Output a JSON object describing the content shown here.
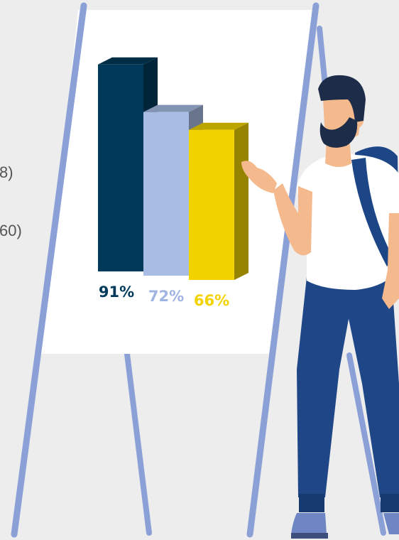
{
  "edge_text": [
    "8)",
    "60)"
  ],
  "colors": {
    "background": "#ededed",
    "easel": "#8ca0d8",
    "board": "#ffffff",
    "bar_dark": "#003a5a",
    "bar_light": "#a8bce4",
    "bar_yellow": "#f2d300",
    "skin": "#f4b98c",
    "beard": "#1d2c48",
    "shirt": "#ffffff",
    "jeans": "#1f4787",
    "backpack": "#1d4687"
  },
  "chart_data": {
    "type": "bar",
    "title": "",
    "xlabel": "",
    "ylabel": "",
    "ylim": [
      0,
      100
    ],
    "grid": false,
    "legend": "none",
    "series": [
      {
        "values": [
          91,
          72,
          66
        ],
        "labels": [
          "91%",
          "72%",
          "66%"
        ],
        "colors": [
          "#003a5a",
          "#a8bce4",
          "#f2d300"
        ]
      }
    ]
  }
}
